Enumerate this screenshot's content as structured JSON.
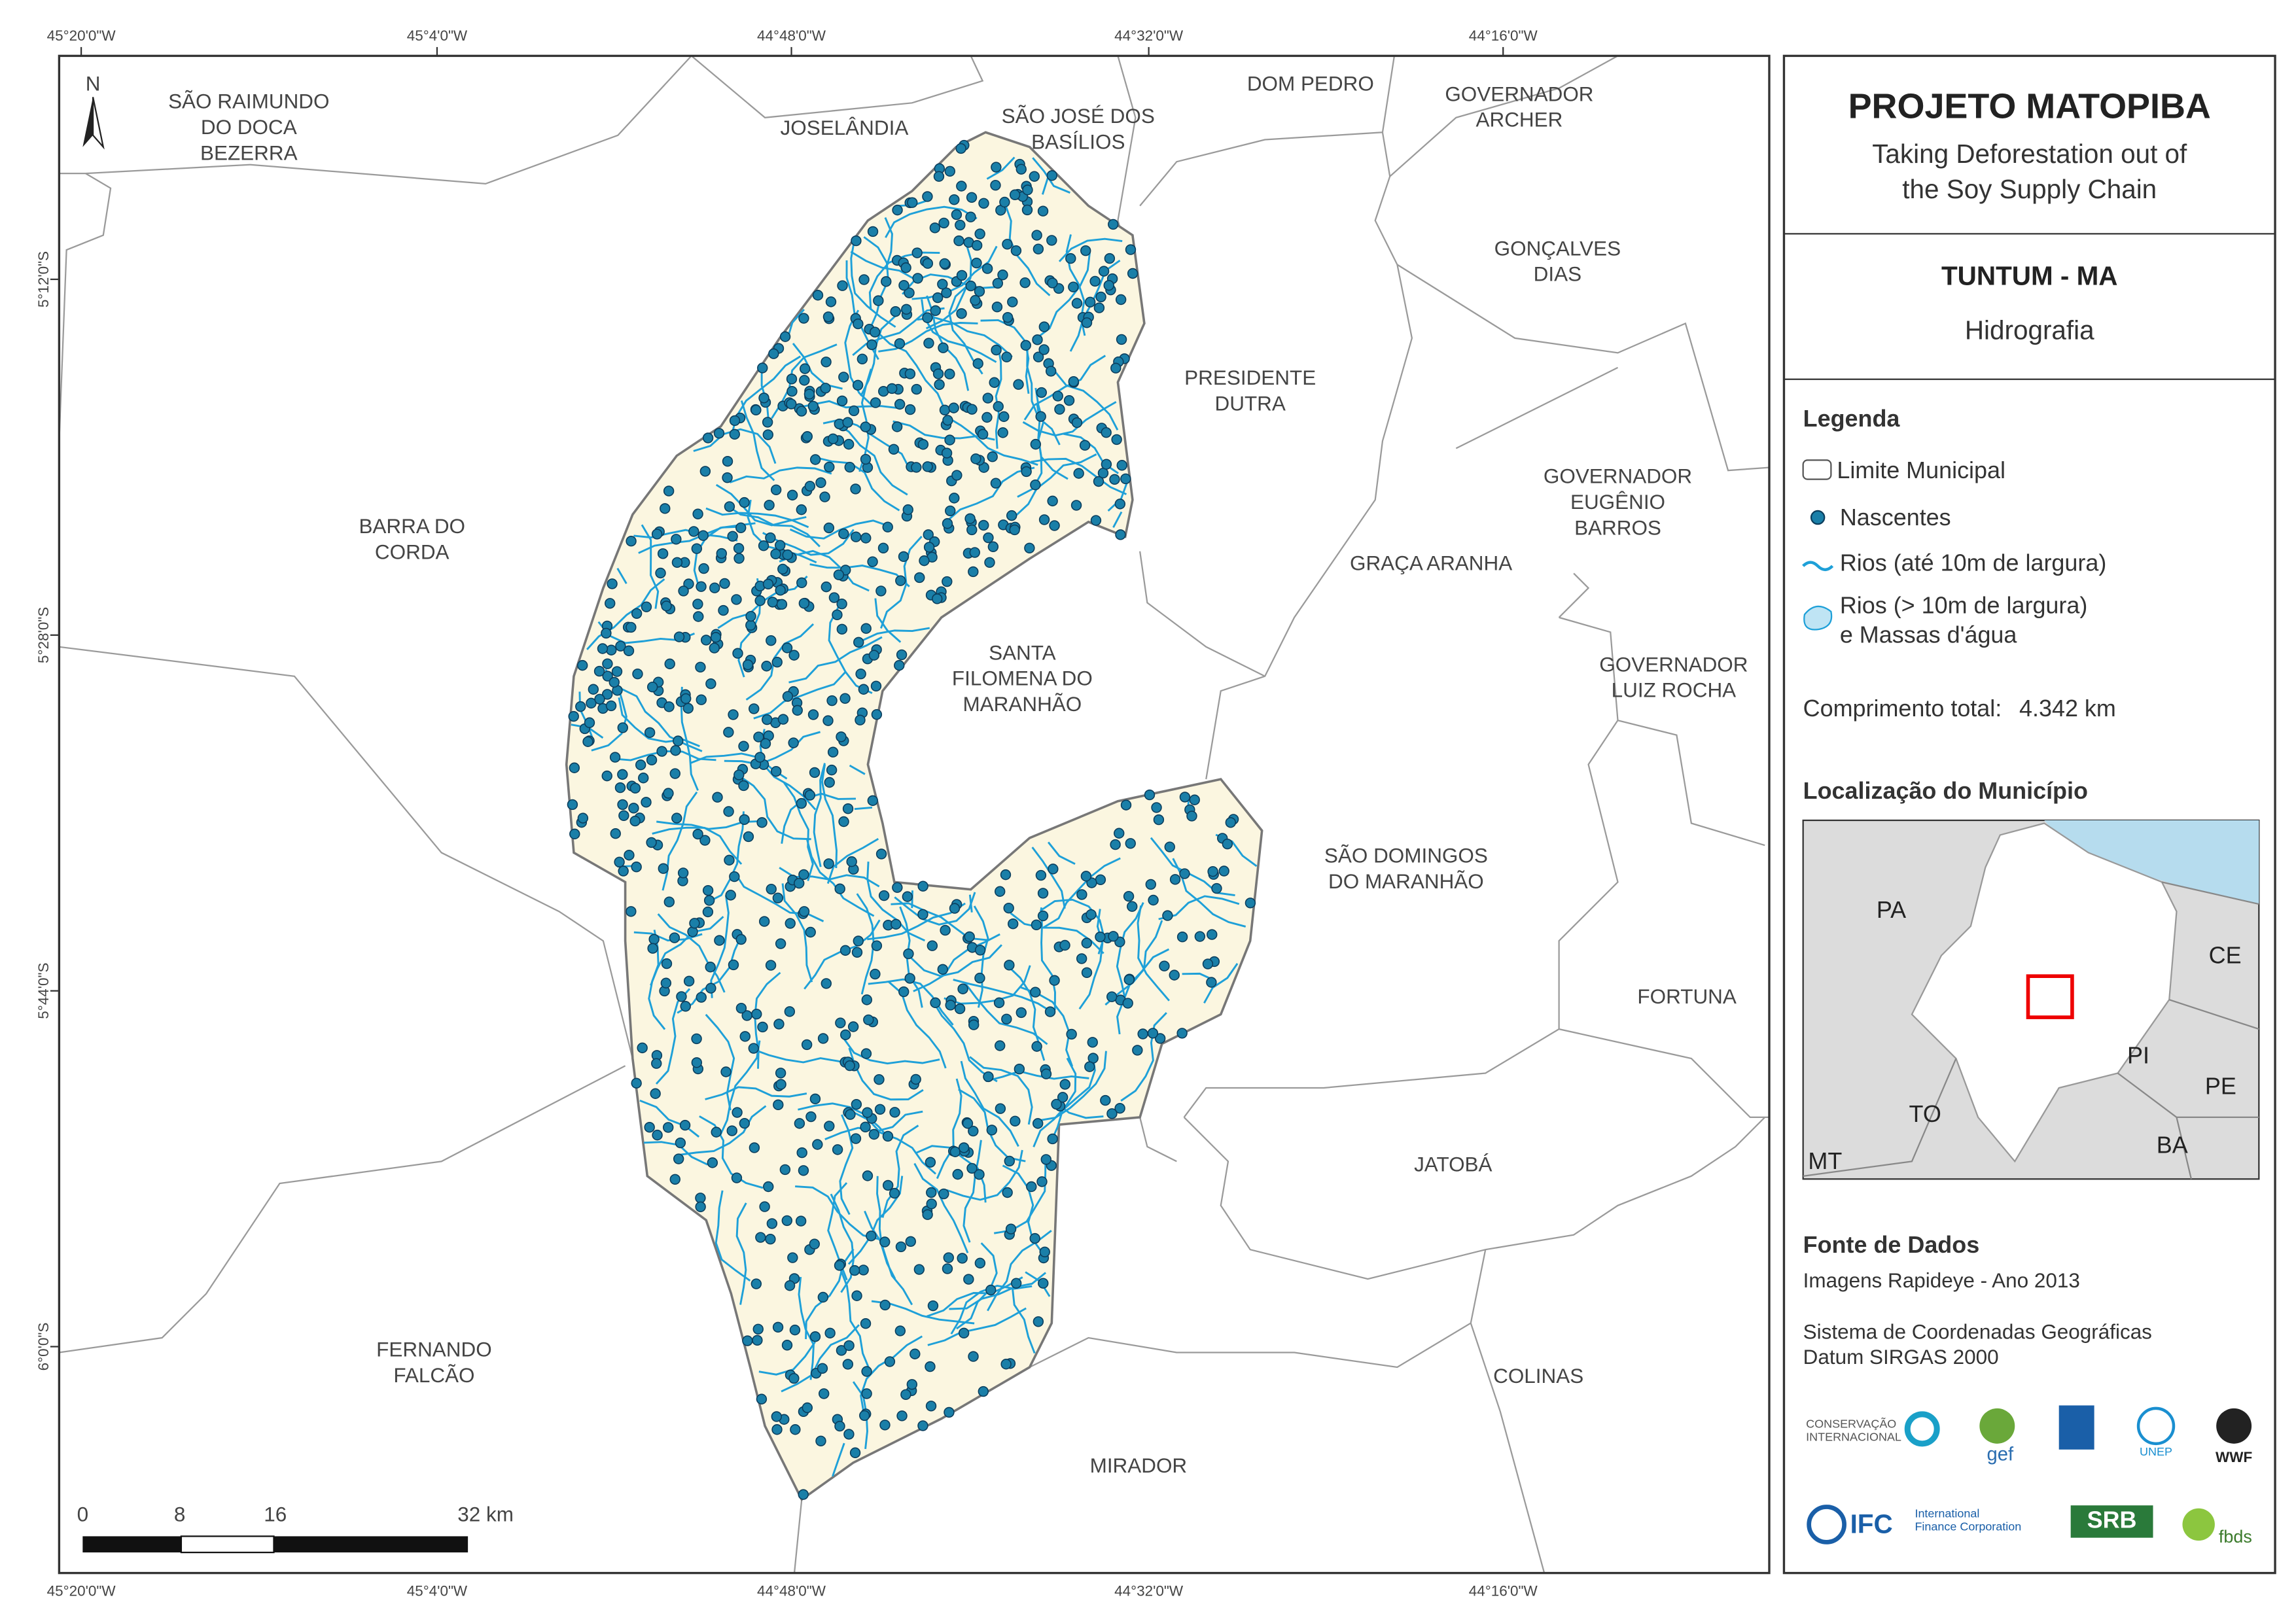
{
  "header": {
    "title": "PROJETO MATOPIBA",
    "subtitle": [
      "Taking Deforestation out of",
      "the Soy Supply Chain"
    ]
  },
  "municipality": {
    "name": "TUNTUM - MA",
    "theme": "Hidrografia"
  },
  "legend": {
    "title": "Legenda",
    "items": [
      "Limite Municipal",
      "Nascentes",
      "Rios (até 10m de largura)"
    ],
    "water": [
      "Rios (> 10m de largura)",
      "e Massas d'água"
    ],
    "total_label": "Comprimento total:",
    "total_value": "4.342 km"
  },
  "location": {
    "title": "Localização do Município",
    "labels": [
      "PA",
      "CE",
      "PI",
      "PE",
      "TO",
      "BA",
      "MT"
    ]
  },
  "sources": {
    "title": "Fonte de Dados",
    "lines": [
      "Imagens Rapideye - Ano 2013",
      "Sistema de Coordenadas Geográficas",
      "Datum SIRGAS 2000"
    ]
  },
  "map": {
    "north": "N",
    "x_ticks": [
      "45°20'0\"W",
      "45°4'0\"W",
      "44°48'0\"W",
      "44°32'0\"W",
      "44°16'0\"W"
    ],
    "y_ticks": [
      "5°12'0\"S",
      "5°28'0\"S",
      "5°44'0\"S",
      "6°0'0\"S"
    ],
    "neighbors": [
      [
        "SÃO RAIMUNDO",
        "DO DOCA",
        "BEZERRA"
      ],
      [
        "JOSELÂNDIA"
      ],
      [
        "SÃO JOSÉ DOS",
        "BASÍLIOS"
      ],
      [
        "DOM PEDRO"
      ],
      [
        "GOVERNADOR",
        "ARCHER"
      ],
      [
        "GONÇALVES",
        "DIAS"
      ],
      [
        "PRESIDENTE",
        "DUTRA"
      ],
      [
        "GOVERNADOR",
        "EUGÊNIO",
        "BARROS"
      ],
      [
        "BARRA DO",
        "CORDA"
      ],
      [
        "GRAÇA ARANHA"
      ],
      [
        "SANTA",
        "FILOMENA DO",
        "MARANHÃO"
      ],
      [
        "GOVERNADOR",
        "LUIZ ROCHA"
      ],
      [
        "SÃO DOMINGOS",
        "DO MARANHÃO"
      ],
      [
        "FORTUNA"
      ],
      [
        "JATOBÁ"
      ],
      [
        "FERNANDO",
        "FALCÃO"
      ],
      [
        "COLINAS"
      ],
      [
        "MIRADOR"
      ]
    ],
    "scale": [
      "0",
      "8",
      "16",
      "32 km"
    ]
  },
  "logos": [
    "CONSERVAÇÃO",
    "INTERNACIONAL",
    "gef",
    "UNEP",
    "WWF",
    "IFC",
    "International",
    "Finance Corporation",
    "SRB",
    "fbds"
  ]
}
